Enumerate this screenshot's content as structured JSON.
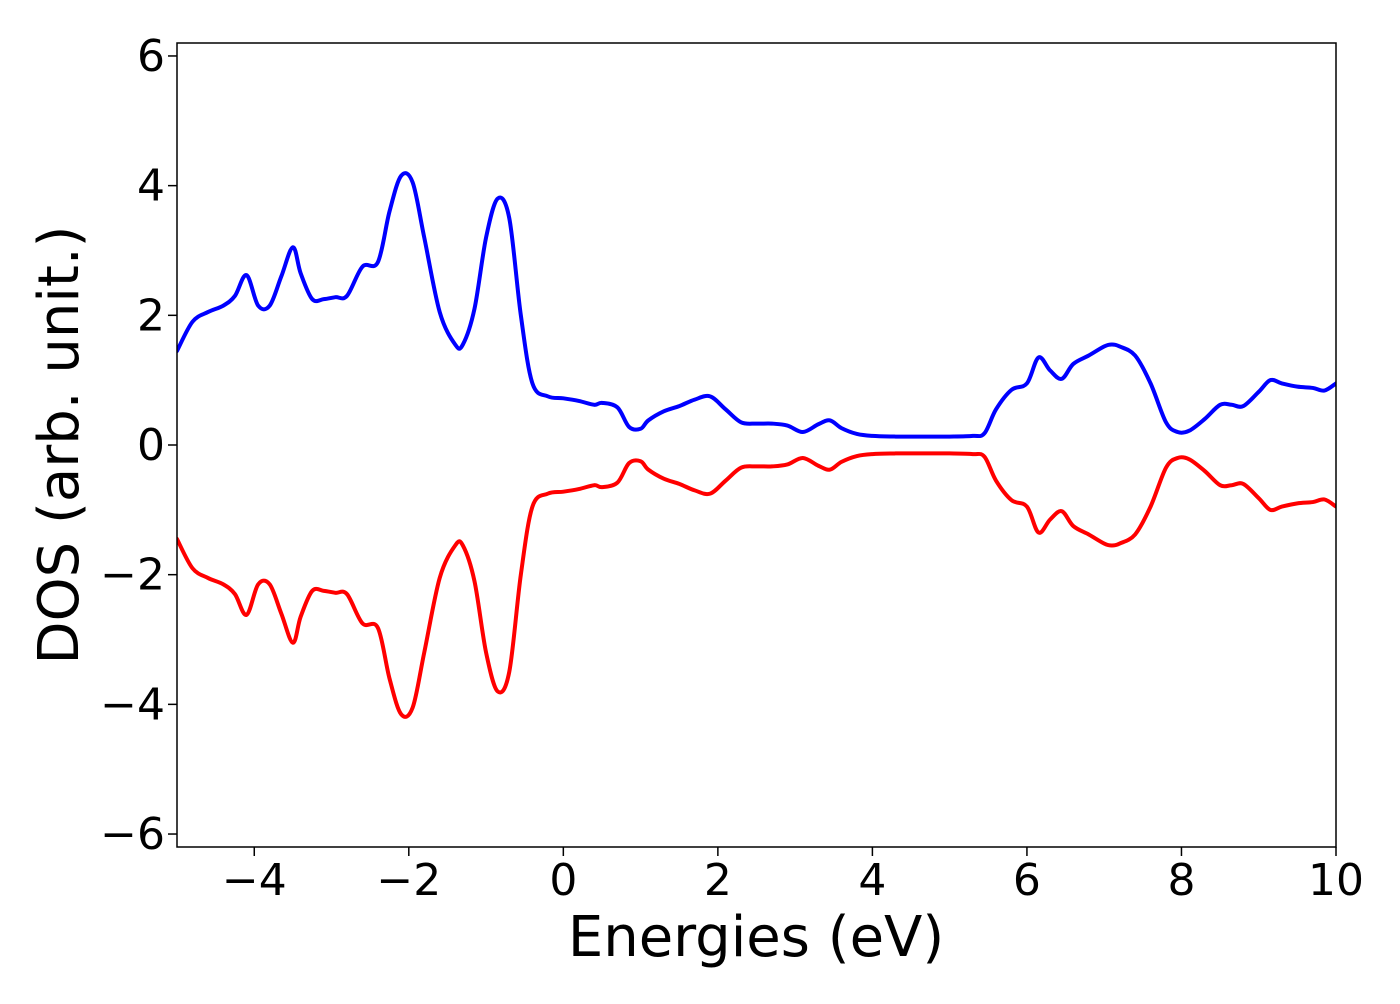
{
  "chart_data": {
    "type": "line",
    "title": "",
    "xlabel": "Energies (eV)",
    "ylabel": "DOS (arb. unit.)",
    "xlim": [
      -5,
      10
    ],
    "ylim": [
      -6.2,
      6.2
    ],
    "grid": false,
    "x_ticks": [
      -4,
      -2,
      0,
      2,
      4,
      6,
      8,
      10
    ],
    "x_tick_labels": [
      "−4",
      "−2",
      "0",
      "2",
      "4",
      "6",
      "8",
      "10"
    ],
    "y_ticks": [
      -6,
      -4,
      -2,
      0,
      2,
      4,
      6
    ],
    "y_tick_labels": [
      "−6",
      "−4",
      "−2",
      "0",
      "2",
      "4",
      "6"
    ],
    "series": [
      {
        "color": "#0000ff",
        "x": [
          -5.0,
          -4.8,
          -4.6,
          -4.4,
          -4.25,
          -4.1,
          -3.95,
          -3.8,
          -3.65,
          -3.5,
          -3.4,
          -3.25,
          -3.1,
          -2.95,
          -2.8,
          -2.6,
          -2.4,
          -2.25,
          -2.1,
          -1.95,
          -1.8,
          -1.6,
          -1.4,
          -1.3,
          -1.15,
          -1.0,
          -0.85,
          -0.7,
          -0.55,
          -0.4,
          -0.2,
          0.0,
          0.2,
          0.4,
          0.5,
          0.7,
          0.85,
          1.0,
          1.1,
          1.3,
          1.5,
          1.7,
          1.9,
          2.1,
          2.3,
          2.5,
          2.7,
          2.9,
          3.1,
          3.3,
          3.45,
          3.6,
          3.8,
          4.0,
          4.3,
          4.6,
          5.0,
          5.3,
          5.45,
          5.6,
          5.8,
          6.0,
          6.15,
          6.3,
          6.45,
          6.6,
          6.8,
          7.0,
          7.1,
          7.2,
          7.4,
          7.6,
          7.8,
          7.95,
          8.1,
          8.3,
          8.5,
          8.65,
          8.8,
          9.0,
          9.15,
          9.3,
          9.5,
          9.7,
          9.85,
          10.0
        ],
        "y": [
          1.45,
          1.9,
          2.05,
          2.15,
          2.3,
          2.62,
          2.15,
          2.15,
          2.6,
          3.05,
          2.65,
          2.25,
          2.25,
          2.28,
          2.3,
          2.75,
          2.82,
          3.6,
          4.15,
          4.05,
          3.2,
          2.05,
          1.55,
          1.55,
          2.1,
          3.2,
          3.8,
          3.5,
          2.0,
          0.95,
          0.75,
          0.72,
          0.68,
          0.62,
          0.65,
          0.58,
          0.28,
          0.25,
          0.38,
          0.52,
          0.6,
          0.7,
          0.75,
          0.55,
          0.35,
          0.33,
          0.33,
          0.3,
          0.2,
          0.32,
          0.38,
          0.26,
          0.17,
          0.14,
          0.13,
          0.13,
          0.13,
          0.14,
          0.18,
          0.55,
          0.85,
          0.95,
          1.35,
          1.15,
          1.02,
          1.25,
          1.38,
          1.52,
          1.55,
          1.52,
          1.38,
          0.95,
          0.35,
          0.2,
          0.22,
          0.4,
          0.62,
          0.62,
          0.6,
          0.82,
          1.0,
          0.95,
          0.9,
          0.88,
          0.84,
          0.95
        ]
      },
      {
        "color": "#ff0000",
        "x": [
          -5.0,
          -4.8,
          -4.6,
          -4.4,
          -4.25,
          -4.1,
          -3.95,
          -3.8,
          -3.65,
          -3.5,
          -3.4,
          -3.25,
          -3.1,
          -2.95,
          -2.8,
          -2.6,
          -2.4,
          -2.25,
          -2.1,
          -1.95,
          -1.8,
          -1.6,
          -1.4,
          -1.3,
          -1.15,
          -1.0,
          -0.85,
          -0.7,
          -0.55,
          -0.4,
          -0.2,
          0.0,
          0.2,
          0.4,
          0.5,
          0.7,
          0.85,
          1.0,
          1.1,
          1.3,
          1.5,
          1.7,
          1.9,
          2.1,
          2.3,
          2.5,
          2.7,
          2.9,
          3.1,
          3.3,
          3.45,
          3.6,
          3.8,
          4.0,
          4.3,
          4.6,
          5.0,
          5.3,
          5.45,
          5.6,
          5.8,
          6.0,
          6.15,
          6.3,
          6.45,
          6.6,
          6.8,
          7.0,
          7.1,
          7.2,
          7.4,
          7.6,
          7.8,
          7.95,
          8.1,
          8.3,
          8.5,
          8.65,
          8.8,
          9.0,
          9.15,
          9.3,
          9.5,
          9.7,
          9.85,
          10.0
        ],
        "y": [
          -1.45,
          -1.9,
          -2.05,
          -2.15,
          -2.3,
          -2.62,
          -2.15,
          -2.15,
          -2.6,
          -3.05,
          -2.65,
          -2.25,
          -2.25,
          -2.28,
          -2.3,
          -2.75,
          -2.82,
          -3.6,
          -4.15,
          -4.05,
          -3.2,
          -2.05,
          -1.55,
          -1.55,
          -2.1,
          -3.2,
          -3.8,
          -3.5,
          -2.0,
          -0.95,
          -0.75,
          -0.72,
          -0.68,
          -0.62,
          -0.65,
          -0.58,
          -0.28,
          -0.25,
          -0.38,
          -0.52,
          -0.6,
          -0.7,
          -0.75,
          -0.55,
          -0.35,
          -0.33,
          -0.33,
          -0.3,
          -0.2,
          -0.32,
          -0.38,
          -0.26,
          -0.17,
          -0.14,
          -0.13,
          -0.13,
          -0.13,
          -0.14,
          -0.18,
          -0.55,
          -0.85,
          -0.95,
          -1.35,
          -1.15,
          -1.02,
          -1.25,
          -1.38,
          -1.52,
          -1.55,
          -1.52,
          -1.38,
          -0.95,
          -0.35,
          -0.2,
          -0.22,
          -0.4,
          -0.62,
          -0.62,
          -0.6,
          -0.82,
          -1.0,
          -0.95,
          -0.9,
          -0.88,
          -0.84,
          -0.95
        ]
      }
    ]
  }
}
